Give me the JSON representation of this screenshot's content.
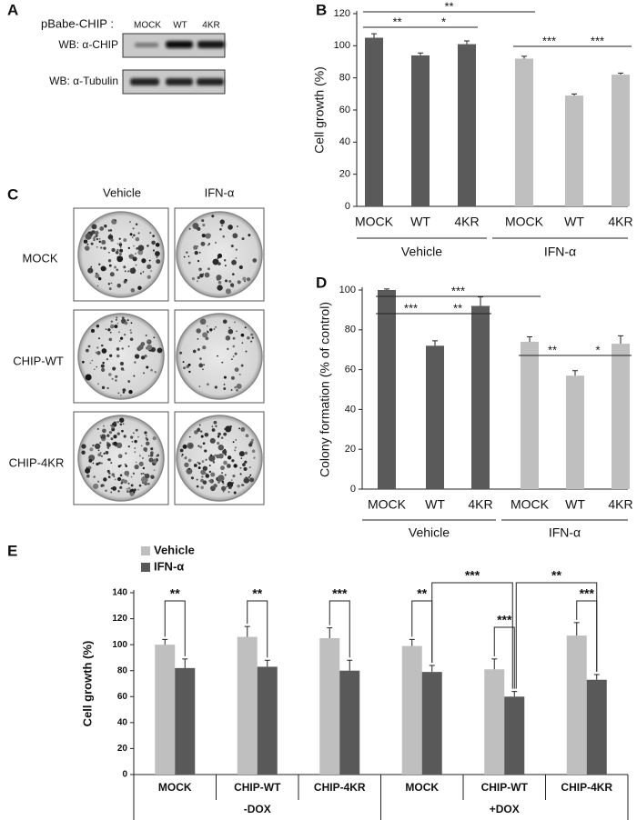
{
  "panel_labels": [
    "A",
    "B",
    "C",
    "D",
    "E"
  ],
  "blot": {
    "construct_label": "pBabe-CHIP :",
    "lanes": [
      "MOCK",
      "WT",
      "4KR"
    ],
    "rows": [
      "WB: α-CHIP",
      "WB: α-Tubulin"
    ]
  },
  "plates": {
    "columns": [
      "Vehicle",
      "IFN-α"
    ],
    "rows": [
      "MOCK",
      "CHIP-WT",
      "CHIP-4KR"
    ]
  },
  "chart_data": [
    {
      "type": "bar",
      "y_label": "Cell growth (%)",
      "categories": [
        "MOCK",
        "WT",
        "4KR",
        "MOCK",
        "WT",
        "4KR"
      ],
      "groups": [
        "Vehicle",
        "IFN-α"
      ],
      "series": [
        {
          "values": [
            105,
            94,
            101,
            92,
            69,
            82
          ],
          "errors": [
            2.5,
            1.5,
            2,
            1.5,
            1,
            1
          ],
          "colors": [
            "#5a5a5a",
            "#5a5a5a",
            "#5a5a5a",
            "#bfbfbf",
            "#bfbfbf",
            "#bfbfbf"
          ]
        }
      ],
      "ylim": [
        0,
        120
      ],
      "yticks": [
        0,
        20,
        40,
        60,
        80,
        100,
        120
      ],
      "annotations": [
        "**",
        "**",
        "*",
        "***",
        "***"
      ]
    },
    {
      "type": "bar",
      "y_label": "Colony formation (% of control)",
      "categories": [
        "MOCK",
        "WT",
        "4KR",
        "MOCK",
        "WT",
        "4KR"
      ],
      "groups": [
        "Vehicle",
        "IFN-α"
      ],
      "series": [
        {
          "values": [
            100,
            72,
            92,
            74,
            57,
            73
          ],
          "errors": [
            0.5,
            2.5,
            4.5,
            2.5,
            2.5,
            4
          ],
          "colors": [
            "#5a5a5a",
            "#5a5a5a",
            "#5a5a5a",
            "#bfbfbf",
            "#bfbfbf",
            "#bfbfbf"
          ]
        }
      ],
      "ylim": [
        0,
        100
      ],
      "yticks": [
        0,
        20,
        40,
        60,
        80,
        100
      ],
      "annotations": [
        "***",
        "***",
        "**",
        "**",
        "*"
      ]
    },
    {
      "type": "bar",
      "y_label": "Cell growth (%)",
      "categories": [
        "MOCK",
        "CHIP-WT",
        "CHIP-4KR",
        "MOCK",
        "CHIP-WT",
        "CHIP-4KR"
      ],
      "groups": [
        "-DOX",
        "+DOX"
      ],
      "series": [
        {
          "name": "Vehicle",
          "color": "#bfbfbf",
          "values": [
            100,
            106,
            105,
            99,
            81,
            107
          ],
          "errors": [
            4,
            8,
            8,
            5,
            8,
            10
          ]
        },
        {
          "name": "IFN-α",
          "color": "#595959",
          "values": [
            82,
            83,
            80,
            79,
            60,
            73
          ],
          "errors": [
            7,
            5,
            8,
            5,
            4,
            4
          ]
        }
      ],
      "ylim": [
        0,
        140
      ],
      "yticks": [
        0,
        20,
        40,
        60,
        80,
        100,
        120,
        140
      ],
      "legend": "upper left",
      "annotations": [
        "**",
        "**",
        "***",
        "**",
        "***",
        "***",
        "***",
        "**"
      ]
    }
  ]
}
